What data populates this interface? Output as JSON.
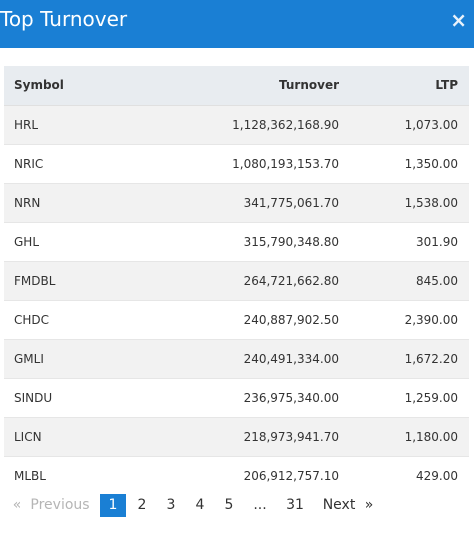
{
  "header": {
    "title": "Top Turnover",
    "close_label": "×"
  },
  "table": {
    "columns": [
      "Symbol",
      "Turnover",
      "LTP"
    ],
    "rows": [
      {
        "symbol": "HRL",
        "turnover": "1,128,362,168.90",
        "ltp": "1,073.00"
      },
      {
        "symbol": "NRIC",
        "turnover": "1,080,193,153.70",
        "ltp": "1,350.00"
      },
      {
        "symbol": "NRN",
        "turnover": "341,775,061.70",
        "ltp": "1,538.00"
      },
      {
        "symbol": "GHL",
        "turnover": "315,790,348.80",
        "ltp": "301.90"
      },
      {
        "symbol": "FMDBL",
        "turnover": "264,721,662.80",
        "ltp": "845.00"
      },
      {
        "symbol": "CHDC",
        "turnover": "240,887,902.50",
        "ltp": "2,390.00"
      },
      {
        "symbol": "GMLI",
        "turnover": "240,491,334.00",
        "ltp": "1,672.20"
      },
      {
        "symbol": "SINDU",
        "turnover": "236,975,340.00",
        "ltp": "1,259.00"
      },
      {
        "symbol": "LICN",
        "turnover": "218,973,941.70",
        "ltp": "1,180.00"
      },
      {
        "symbol": "MLBL",
        "turnover": "206,912,757.10",
        "ltp": "429.00"
      }
    ]
  },
  "pagination": {
    "prev_arrow": "«",
    "prev_label": "Previous",
    "pages": [
      "1",
      "2",
      "3",
      "4",
      "5"
    ],
    "ellipsis": "...",
    "last_page": "31",
    "next_label": "Next",
    "next_arrow": "»",
    "active_page": "1"
  }
}
